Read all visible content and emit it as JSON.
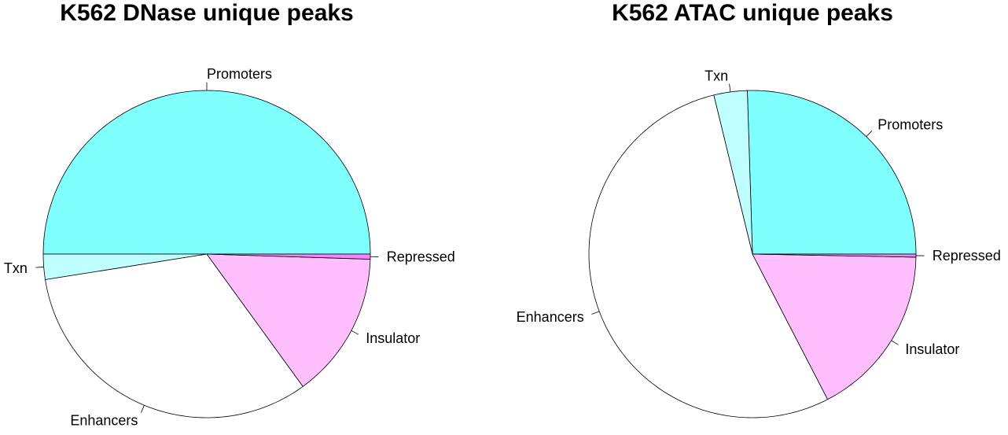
{
  "chart_data": [
    {
      "type": "pie",
      "title": "K562 DNase unique peaks",
      "slices": [
        {
          "label": "Promoters",
          "value": 50.0,
          "color": "#80ffff"
        },
        {
          "label": "Txn",
          "value": 2.5,
          "color": "#bfffff"
        },
        {
          "label": "Enhancers",
          "value": 32.5,
          "color": "#ffffff"
        },
        {
          "label": "Insulator",
          "value": 14.5,
          "color": "#ffbfff"
        },
        {
          "label": "Repressed",
          "value": 0.5,
          "color": "#ff80ff"
        }
      ]
    },
    {
      "type": "pie",
      "title": "K562 ATAC unique peaks",
      "slices": [
        {
          "label": "Promoters",
          "value": 25.5,
          "color": "#80ffff"
        },
        {
          "label": "Txn",
          "value": 3.3,
          "color": "#bfffff"
        },
        {
          "label": "Enhancers",
          "value": 53.8,
          "color": "#ffffff"
        },
        {
          "label": "Insulator",
          "value": 17.1,
          "color": "#ffbfff"
        },
        {
          "label": "Repressed",
          "value": 0.3,
          "color": "#ff80ff"
        }
      ]
    }
  ]
}
